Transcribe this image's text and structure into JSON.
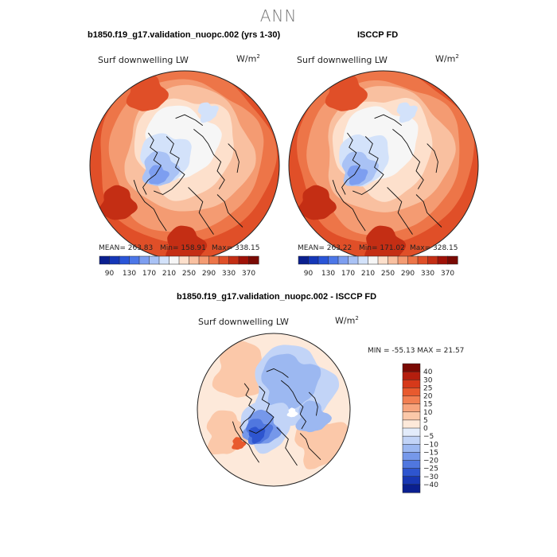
{
  "main_title": "ANN",
  "panels": [
    {
      "title": "b1850.f19_g17.validation_nuopc.002 (yrs 1-30)",
      "variable": "Surf downwelling LW",
      "units": "W/m",
      "units_sup": "2",
      "mean_label": "MEAN= 263.83",
      "min_label": "Min= 158.91",
      "max_label": "Max= 338.15"
    },
    {
      "title": "ISCCP FD",
      "variable": "Surf downwelling LW",
      "units": "W/m",
      "units_sup": "2",
      "mean_label": "MEAN= 263.22",
      "min_label": "Min= 171.02",
      "max_label": "Max= 328.15"
    },
    {
      "title": "b1850.f19_g17.validation_nuopc.002 - ISCCP FD",
      "variable": "Surf downwelling LW",
      "units": "W/m",
      "units_sup": "2",
      "minmax_label": "MIN = -55.13 MAX = 21.57"
    }
  ],
  "chart_data": [
    {
      "type": "heatmap",
      "projection": "north-polar-stereographic",
      "title": "b1850.f19_g17.validation_nuopc.002 (yrs 1-30)",
      "variable": "Surf downwelling LW",
      "units": "W/m2",
      "stats": {
        "mean": 263.83,
        "min": 158.91,
        "max": 338.15
      },
      "colorbar": {
        "levels": [
          90,
          110,
          130,
          150,
          170,
          190,
          210,
          230,
          250,
          270,
          290,
          310,
          330,
          350,
          370
        ],
        "tick_labels": [
          "90",
          "130",
          "170",
          "210",
          "250",
          "290",
          "330",
          "370"
        ],
        "colors": [
          "#0a1f8f",
          "#1537b8",
          "#2a55d8",
          "#4c77e8",
          "#7d9ef0",
          "#a9c2f5",
          "#d3e2fa",
          "#f6f6f6",
          "#fde0cc",
          "#f9c0a0",
          "#f49b72",
          "#ed7548",
          "#e04f28",
          "#c42e14",
          "#a01208",
          "#7a0a04"
        ]
      }
    },
    {
      "type": "heatmap",
      "projection": "north-polar-stereographic",
      "title": "ISCCP FD",
      "variable": "Surf downwelling LW",
      "units": "W/m2",
      "stats": {
        "mean": 263.22,
        "min": 171.02,
        "max": 328.15
      },
      "colorbar": {
        "levels": [
          90,
          110,
          130,
          150,
          170,
          190,
          210,
          230,
          250,
          270,
          290,
          310,
          330,
          350,
          370
        ],
        "tick_labels": [
          "90",
          "130",
          "170",
          "210",
          "250",
          "290",
          "330",
          "370"
        ],
        "colors": [
          "#0a1f8f",
          "#1537b8",
          "#2a55d8",
          "#4c77e8",
          "#7d9ef0",
          "#a9c2f5",
          "#d3e2fa",
          "#f6f6f6",
          "#fde0cc",
          "#f9c0a0",
          "#f49b72",
          "#ed7548",
          "#e04f28",
          "#c42e14",
          "#a01208",
          "#7a0a04"
        ]
      }
    },
    {
      "type": "heatmap",
      "projection": "north-polar-stereographic",
      "title": "b1850.f19_g17.validation_nuopc.002 - ISCCP FD",
      "variable": "Surf downwelling LW",
      "units": "W/m2",
      "stats": {
        "min": -55.13,
        "max": 21.57
      },
      "colorbar": {
        "orientation": "vertical",
        "levels": [
          -40,
          -30,
          -25,
          -20,
          -15,
          -10,
          -5,
          0,
          5,
          10,
          15,
          20,
          25,
          30,
          40
        ],
        "tick_labels": [
          "40",
          "30",
          "25",
          "20",
          "15",
          "10",
          "5",
          "0",
          "−5",
          "−10",
          "−15",
          "−20",
          "−25",
          "−30",
          "−40"
        ],
        "colors": [
          "#7a0a04",
          "#b41e0e",
          "#d6391a",
          "#e85a2e",
          "#f27f52",
          "#f7a47d",
          "#fbc8a9",
          "#fde9da",
          "#e3ecfb",
          "#c2d4f7",
          "#9cb8f1",
          "#7698ea",
          "#5077df",
          "#2e55cf",
          "#1837b3",
          "#0a1f8f"
        ]
      }
    }
  ]
}
